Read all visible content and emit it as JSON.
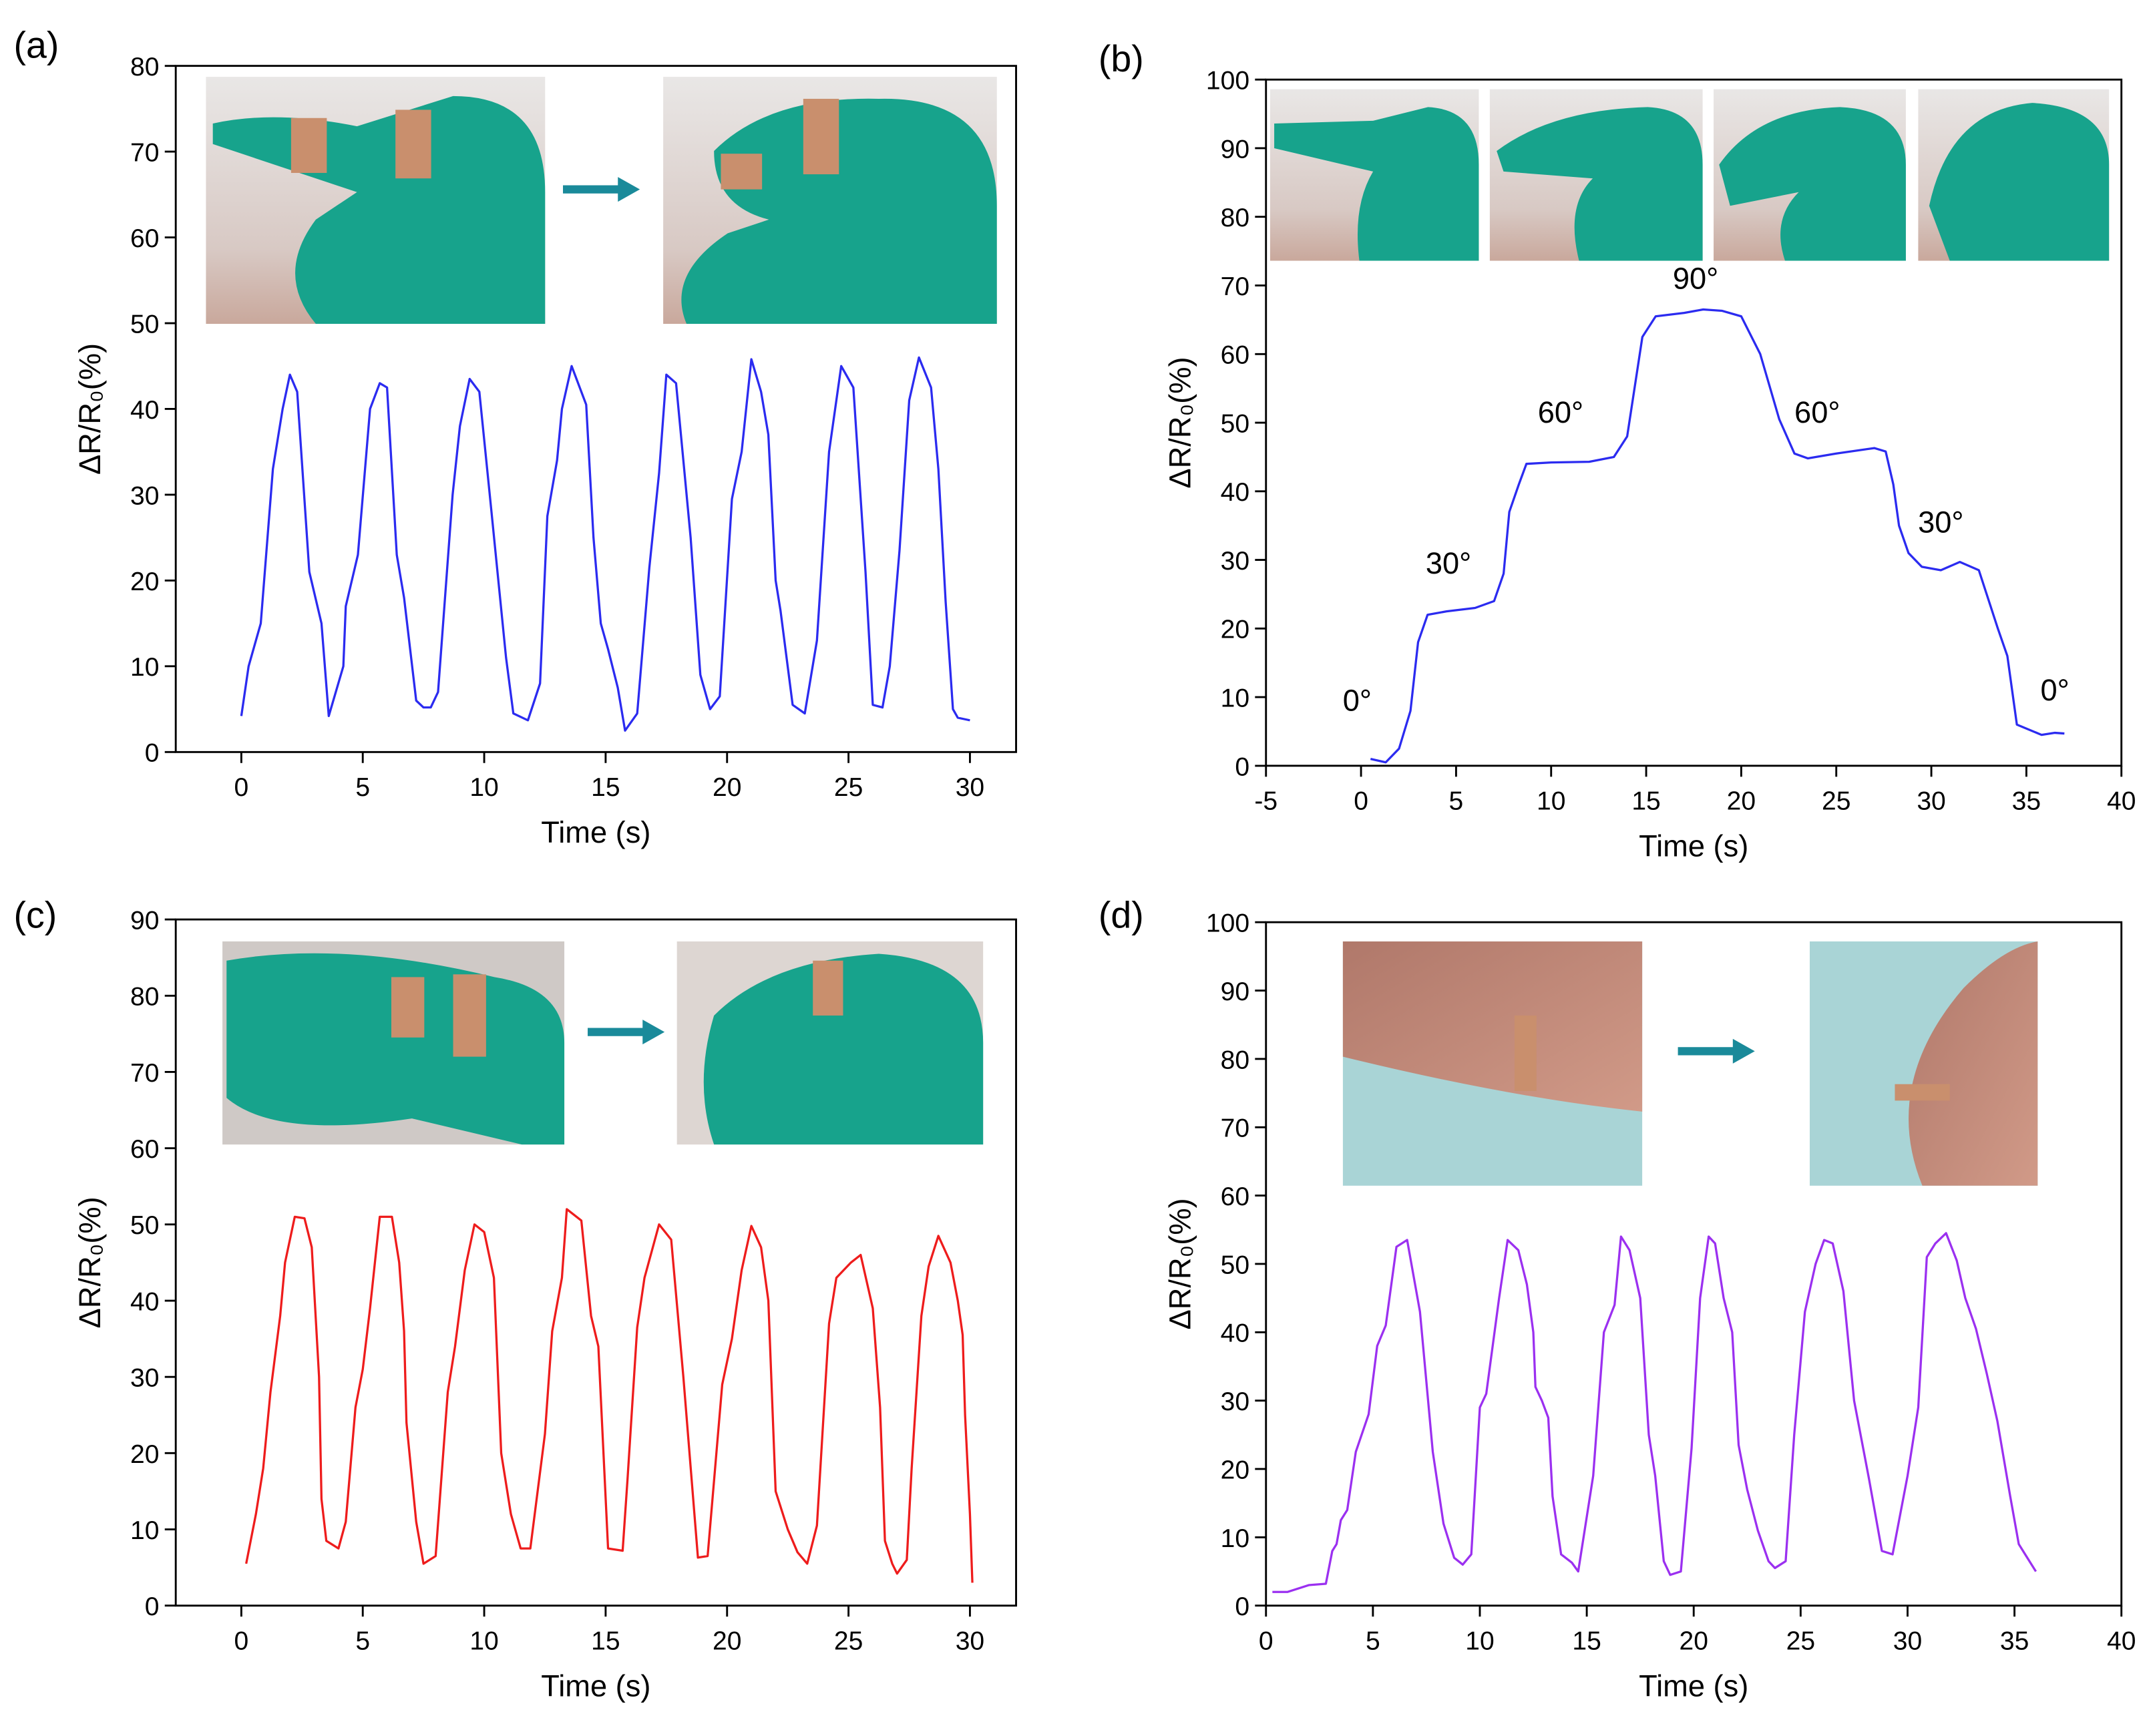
{
  "chart_data": [
    {
      "type": "line",
      "panel_label": "(a)",
      "xlabel": "Time (s)",
      "ylabel": "ΔR/R₀(%)",
      "color": "#2b2bf0",
      "xlim": [
        -2.7,
        31.9
      ],
      "ylim": [
        0,
        80
      ],
      "xticks": [
        0,
        5,
        10,
        15,
        20,
        25,
        30
      ],
      "yticks": [
        0,
        10,
        20,
        30,
        40,
        50,
        60,
        70,
        80
      ],
      "x": [
        0,
        0.3,
        0.8,
        1.3,
        1.7,
        2.0,
        2.3,
        2.8,
        3.3,
        3.6,
        4.2,
        4.3,
        4.8,
        5.3,
        5.7,
        6.0,
        6.4,
        6.7,
        7.2,
        7.5,
        7.8,
        8.1,
        8.7,
        9.0,
        9.4,
        9.8,
        10.3,
        10.9,
        11.2,
        11.8,
        12.3,
        12.6,
        13.0,
        13.2,
        13.6,
        14.2,
        14.5,
        14.8,
        15.1,
        15.5,
        15.8,
        16.3,
        16.8,
        17.2,
        17.5,
        17.9,
        18.5,
        18.9,
        19.3,
        19.7,
        20.2,
        20.6,
        21.0,
        21.4,
        21.7,
        22.0,
        22.2,
        22.7,
        23.2,
        23.7,
        24.2,
        24.7,
        25.2,
        25.7,
        26.0,
        26.4,
        26.7,
        27.1,
        27.5,
        27.9,
        28.4,
        28.7,
        29.0,
        29.3,
        29.5,
        30.0
      ],
      "values": [
        4.2,
        10,
        15,
        33,
        40,
        44,
        42,
        21,
        15,
        4.2,
        10,
        17,
        23,
        40,
        43,
        42.5,
        23,
        18,
        6,
        5.2,
        5.2,
        7,
        30,
        38,
        43.5,
        42,
        28,
        11,
        4.5,
        3.7,
        8,
        27.5,
        34,
        40,
        45,
        40.5,
        25,
        15,
        12,
        7.5,
        2.5,
        4.5,
        21.5,
        32.5,
        44,
        43,
        25,
        9,
        5,
        6.5,
        29.5,
        35,
        45.8,
        42,
        37,
        20,
        16.5,
        5.5,
        4.5,
        13,
        35,
        45,
        42.5,
        21,
        5.5,
        5.2,
        10,
        23.5,
        41,
        46,
        42.5,
        33,
        17.5,
        5,
        4,
        3.7
      ]
    },
    {
      "type": "line",
      "panel_label": "(b)",
      "xlabel": "Time (s)",
      "ylabel": "ΔR/R₀(%)",
      "color": "#2b2bf0",
      "xlim": [
        -5,
        40
      ],
      "ylim": [
        0,
        100
      ],
      "xticks": [
        -5,
        0,
        5,
        10,
        15,
        20,
        25,
        30,
        35,
        40
      ],
      "yticks": [
        0,
        10,
        20,
        30,
        40,
        50,
        60,
        70,
        80,
        90,
        100
      ],
      "annotations": [
        "0°",
        "30°",
        "60°",
        "90°",
        "60°",
        "30°",
        "0°"
      ],
      "x": [
        0.5,
        1.3,
        2,
        2.6,
        3.0,
        3.5,
        4.5,
        6,
        7,
        7.5,
        7.8,
        8.3,
        8.7,
        10,
        12,
        13.3,
        14,
        14.8,
        15.5,
        17,
        18,
        19,
        20,
        21,
        22,
        22.8,
        23.5,
        25,
        27,
        27.6,
        28,
        28.3,
        28.8,
        29.5,
        30.5,
        31.5,
        32.5,
        33.5,
        34,
        34.5,
        35.8,
        36.5,
        37
      ],
      "values": [
        1,
        0.5,
        2.5,
        8,
        18,
        22,
        22.5,
        23,
        24,
        28,
        37,
        41,
        44,
        44.2,
        44.3,
        45,
        48,
        62.5,
        65.5,
        66,
        66.5,
        66.3,
        65.5,
        60,
        50.5,
        45.5,
        44.8,
        45.5,
        46.3,
        45.8,
        41,
        35,
        31,
        29,
        28.5,
        29.7,
        28.5,
        20,
        16,
        6,
        4.5,
        4.8,
        4.7
      ]
    },
    {
      "type": "line",
      "panel_label": "(c)",
      "xlabel": "Time (s)",
      "ylabel": "ΔR/R₀(%)",
      "color": "#ee1c1c",
      "xlim": [
        -2.7,
        31.9
      ],
      "ylim": [
        0,
        90
      ],
      "xticks": [
        0,
        5,
        10,
        15,
        20,
        25,
        30
      ],
      "yticks": [
        0,
        10,
        20,
        30,
        40,
        50,
        60,
        70,
        80,
        90
      ],
      "x": [
        0.2,
        0.6,
        0.9,
        1.2,
        1.6,
        1.8,
        2.2,
        2.6,
        2.9,
        3.2,
        3.3,
        3.5,
        4.0,
        4.3,
        4.7,
        5.0,
        5.3,
        5.7,
        6.2,
        6.5,
        6.7,
        6.8,
        7.2,
        7.5,
        8.0,
        8.5,
        8.8,
        9.2,
        9.6,
        10.0,
        10.4,
        10.7,
        11.1,
        11.5,
        11.9,
        12.5,
        12.8,
        13.2,
        13.4,
        14.0,
        14.4,
        14.7,
        15.1,
        15.7,
        15.9,
        16.3,
        16.6,
        17.2,
        17.7,
        18.2,
        18.8,
        19.2,
        19.8,
        20.2,
        20.6,
        21.0,
        21.4,
        21.7,
        22.0,
        22.5,
        22.9,
        23.3,
        23.7,
        24.2,
        24.5,
        25.1,
        25.5,
        26.0,
        26.3,
        26.5,
        26.8,
        27.0,
        27.4,
        27.6,
        28.0,
        28.3,
        28.7,
        29.2,
        29.5,
        29.7,
        29.8,
        30.0,
        30.1
      ],
      "values": [
        5.5,
        12,
        18,
        28,
        38,
        45,
        51,
        50.8,
        47,
        30,
        14,
        8.5,
        7.5,
        11,
        26,
        31,
        39,
        51,
        51,
        45,
        36,
        24,
        11,
        5.5,
        6.5,
        28,
        34,
        44,
        50,
        49,
        43,
        20,
        12,
        7.5,
        7.5,
        22.5,
        36,
        43,
        52,
        50.5,
        38,
        34,
        7.5,
        7.2,
        16.5,
        36.5,
        43,
        50,
        48,
        30,
        6.3,
        6.5,
        29,
        35,
        44,
        49.8,
        47,
        40,
        15,
        10,
        7,
        5.5,
        10.5,
        37,
        43,
        45,
        46,
        39,
        26,
        8.5,
        5.5,
        4.2,
        6,
        18,
        38,
        44.5,
        48.5,
        45,
        40,
        35.5,
        25,
        12,
        3
      ]
    },
    {
      "type": "line",
      "panel_label": "(d)",
      "xlabel": "Time (s)",
      "ylabel": "ΔR/R₀(%)",
      "color": "#9b30f0",
      "xlim": [
        0,
        40
      ],
      "ylim": [
        0,
        100
      ],
      "xticks": [
        0,
        5,
        10,
        15,
        20,
        25,
        30,
        35,
        40
      ],
      "yticks": [
        0,
        10,
        20,
        30,
        40,
        50,
        60,
        70,
        80,
        90,
        100
      ],
      "x": [
        0.3,
        1.0,
        2,
        2.8,
        3.1,
        3.3,
        3.5,
        3.8,
        4.2,
        4.8,
        5.2,
        5.6,
        6.1,
        6.6,
        7.2,
        7.8,
        8.3,
        8.8,
        9.2,
        9.6,
        10.0,
        10.3,
        10.9,
        11.3,
        11.8,
        12.2,
        12.5,
        12.6,
        12.9,
        13.2,
        13.4,
        13.8,
        14.3,
        14.6,
        15.3,
        15.8,
        16.3,
        16.6,
        17.0,
        17.5,
        17.9,
        18.2,
        18.6,
        18.9,
        19.4,
        19.9,
        20.3,
        20.7,
        21.0,
        21.4,
        21.8,
        22.1,
        22.5,
        23.0,
        23.5,
        23.8,
        24.3,
        24.7,
        25.2,
        25.7,
        26.1,
        26.5,
        27.0,
        27.5,
        28.2,
        28.8,
        29.3,
        30.0,
        30.5,
        30.9,
        31.3,
        31.8,
        32.3,
        32.7,
        33.2,
        33.7,
        34.2,
        34.8,
        35.2,
        35.6,
        36.0
      ],
      "values": [
        2,
        2,
        3,
        3.2,
        8,
        9,
        12.5,
        14,
        22.5,
        28,
        38,
        41,
        52.5,
        53.5,
        43,
        22.5,
        12,
        7,
        6,
        7.5,
        29,
        31,
        45,
        53.5,
        52,
        47,
        40,
        32,
        30,
        27.5,
        16,
        7.5,
        6.3,
        5,
        19,
        40,
        44,
        54,
        52,
        45,
        25,
        19,
        6.5,
        4.5,
        5,
        23,
        45,
        54,
        53,
        45,
        40,
        23.5,
        17,
        11,
        6.5,
        5.5,
        6.5,
        25,
        43,
        50,
        53.5,
        53,
        46,
        30,
        18.5,
        8,
        7.5,
        19,
        29,
        51,
        53,
        54.5,
        50.5,
        45,
        40.5,
        34,
        27,
        16,
        9,
        7,
        5
      ]
    }
  ]
}
